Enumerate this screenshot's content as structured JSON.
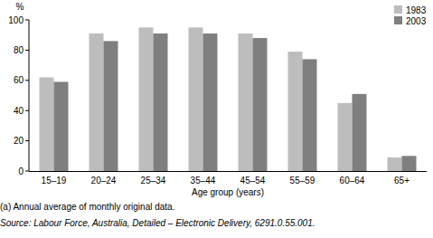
{
  "chart_data": {
    "type": "bar",
    "y_label": "%",
    "x_label": "Age group (years)",
    "annotations": [
      "(a) Annual average of monthly original data.",
      "Source: Labour Force, Australia, Detailed – Electronic Delivery, 6291.0.55.001."
    ],
    "categories": [
      "15–19",
      "20–24",
      "25–34",
      "35–44",
      "45–54",
      "55–59",
      "60–64",
      "65+"
    ],
    "series": [
      {
        "name": "1983",
        "color": "#bdbdbd",
        "values": [
          62,
          91,
          95,
          95,
          91,
          79,
          45,
          9
        ]
      },
      {
        "name": "2003",
        "color": "#7f7f7f",
        "values": [
          59,
          86,
          91,
          91,
          88,
          74,
          51,
          10
        ]
      }
    ],
    "ylim": [
      0,
      100
    ],
    "yticks": [
      0,
      20,
      40,
      60,
      80,
      100
    ],
    "grid": false,
    "legend": "top-right"
  }
}
